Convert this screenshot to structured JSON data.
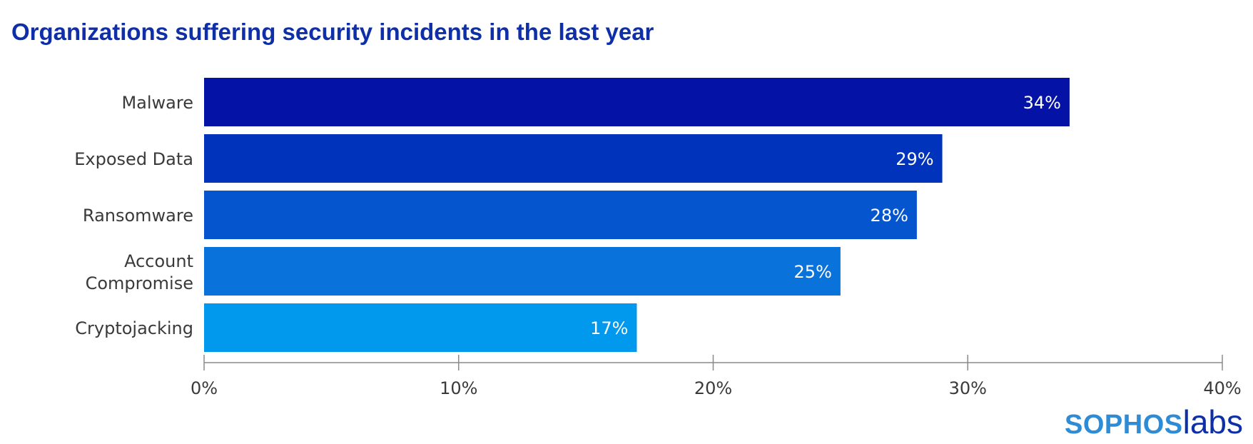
{
  "chart_data": {
    "type": "bar",
    "orientation": "horizontal",
    "title": "Organizations suffering security incidents in the last year",
    "categories": [
      "Malware",
      "Exposed Data",
      "Ransomware",
      "Account Compromise",
      "Cryptojacking"
    ],
    "category_lines": [
      [
        "Malware"
      ],
      [
        "Exposed Data"
      ],
      [
        "Ransomware"
      ],
      [
        "Account",
        "Compromise"
      ],
      [
        "Cryptojacking"
      ]
    ],
    "values": [
      34,
      29,
      28,
      25,
      17
    ],
    "value_labels": [
      "34%",
      "29%",
      "28%",
      "25%",
      "17%"
    ],
    "xlim": [
      0,
      40
    ],
    "ticks": [
      0,
      10,
      20,
      30,
      40
    ],
    "tick_labels": [
      "0%",
      "10%",
      "20%",
      "30%",
      "40%"
    ],
    "xlabel": "",
    "ylabel": "",
    "grid": false,
    "bar_colors": [
      "#0412a6",
      "#0033bb",
      "#0555cf",
      "#0a72db",
      "#0099ee"
    ],
    "title_color": "#0e2fa8"
  },
  "logo": {
    "brand": "SOPHOS",
    "suffix": "labs"
  }
}
